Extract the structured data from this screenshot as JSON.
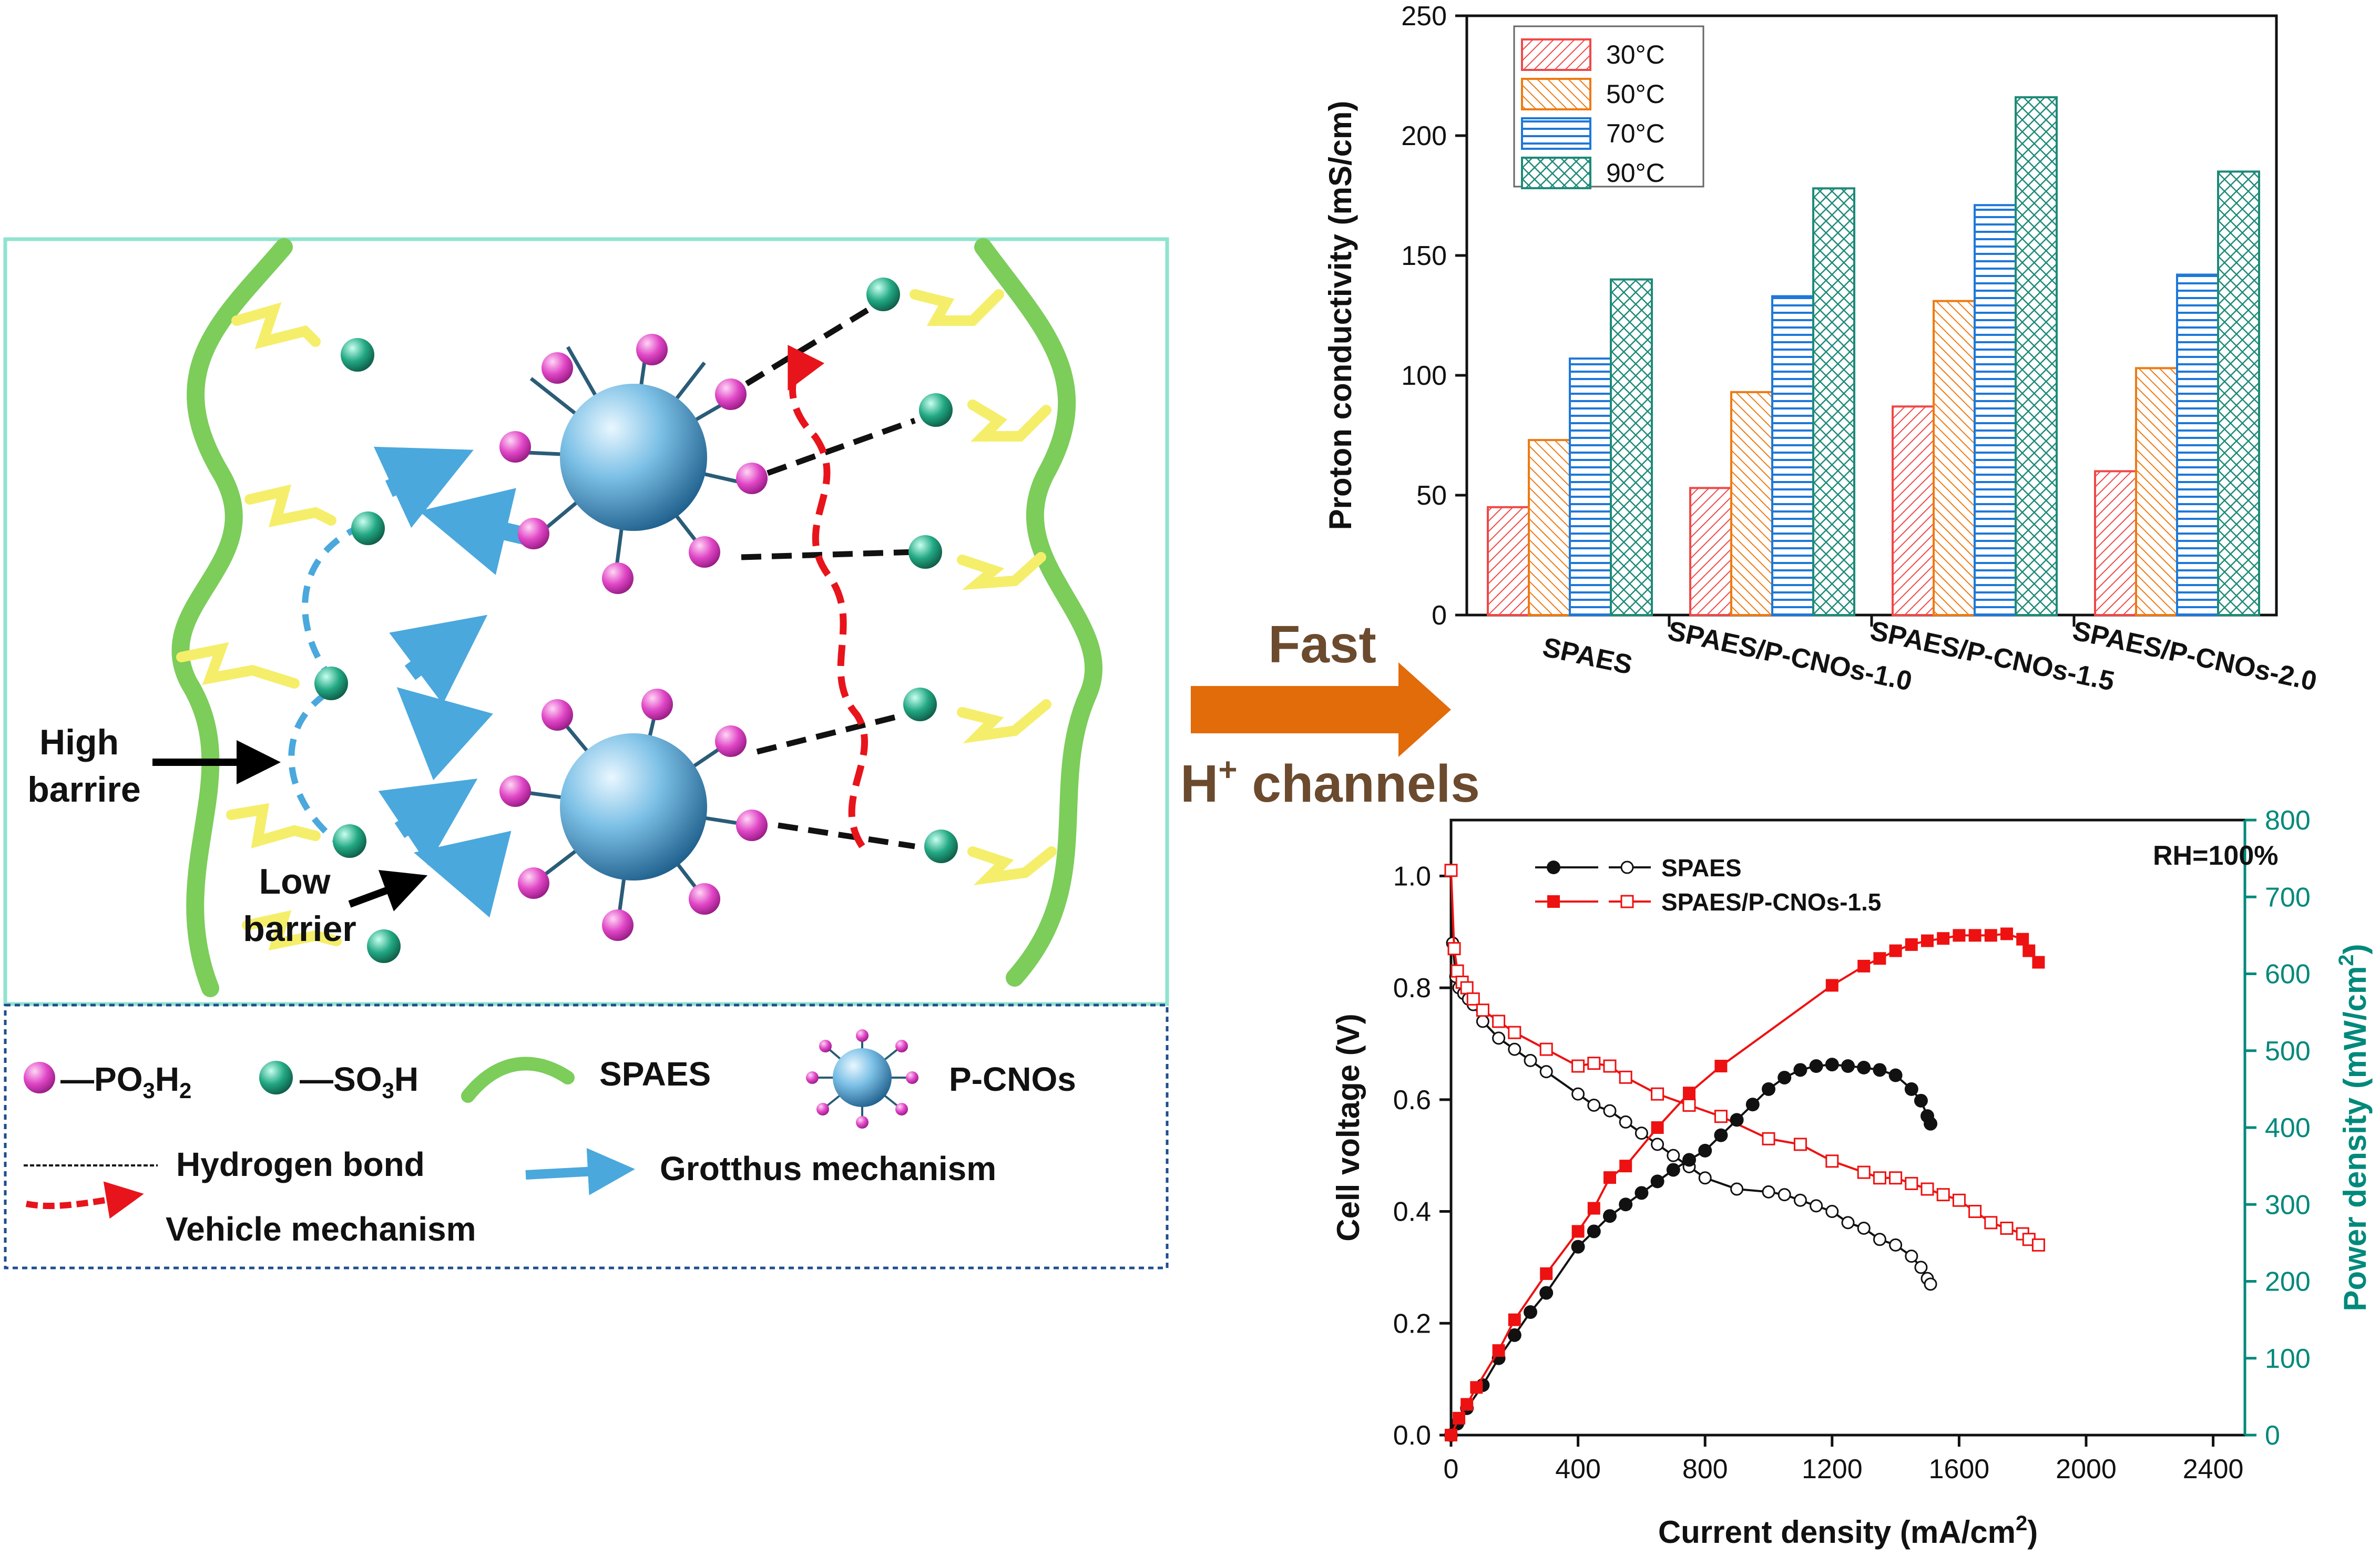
{
  "schematic": {
    "label_high_barrier": [
      "High",
      "barrire"
    ],
    "label_low_barrier": [
      "Low",
      "barrier"
    ]
  },
  "legend": {
    "po3h2_parts": [
      "—PO",
      "3",
      "H",
      "2"
    ],
    "so3h_parts": [
      "—SO",
      "3",
      "H"
    ],
    "spaes": "SPAES",
    "pcnos": "P-CNOs",
    "hydrogen_bond": "Hydrogen bond",
    "grotthus": "Grotthus mechanism",
    "vehicle": "Vehicle mechanism"
  },
  "arrow_label": {
    "top": "Fast",
    "bottom_prefix": "H",
    "bottom_sup": "+",
    "bottom_suffix": " channels"
  },
  "colors": {
    "membrane_green": "#7ccd5a",
    "sidechain_yellow": "#f5ee6a",
    "frame_teal": "#8fe3cf",
    "legend_border": "#1f4e8c",
    "grotthus_blue": "#4aa8dd",
    "vehicle_red": "#e8141b",
    "fast_arrow": "#e26b0a",
    "heading_brown": "#6b4a2e",
    "po3h2_pink": "#d83cc2",
    "so3h_green": "#1e9e7a",
    "core_blue": "#5fa6cc",
    "c30": "#f04848",
    "c50": "#ef7a12",
    "c70": "#1e78d8",
    "c90": "#1e8a78",
    "c90_fill": "#2a9d8a",
    "red_series": "#ee1111",
    "power_axis": "#00897b"
  },
  "chart_data": [
    {
      "type": "bar",
      "ylabel": "Proton conductivity (mS/cm)",
      "ylim": [
        0,
        250
      ],
      "yticks": [
        "0",
        "50",
        "100",
        "150",
        "200",
        "250"
      ],
      "categories": [
        "SPAES",
        "SPAES/P-CNOs-1.0",
        "SPAES/P-CNOs-1.5",
        "SPAES/P-CNOs-2.0"
      ],
      "series": [
        {
          "name": "30°C",
          "values": [
            45,
            53,
            87,
            60
          ]
        },
        {
          "name": "50°C",
          "values": [
            73,
            93,
            131,
            103
          ]
        },
        {
          "name": "70°C",
          "values": [
            107,
            133,
            171,
            142
          ]
        },
        {
          "name": "90°C",
          "values": [
            140,
            178,
            216,
            185
          ]
        }
      ],
      "legend_position": "top-left"
    },
    {
      "type": "line",
      "xlabel_prefix": "Current density (mA/cm",
      "xlabel_sup": "2",
      "xlabel_suffix": ")",
      "ylabel": "Cell voltage (V)",
      "y2label_prefix": "Power density (mW/cm",
      "y2label_sup": "2",
      "y2label_suffix": ")",
      "annotation": "RH=100%",
      "xlim": [
        0,
        2500
      ],
      "ylim": [
        0,
        1.1
      ],
      "y2lim": [
        0,
        800
      ],
      "xticks": [
        "0",
        "400",
        "800",
        "1200",
        "1600",
        "2000",
        "2400"
      ],
      "yticks": [
        "0.0",
        "0.2",
        "0.4",
        "0.6",
        "0.8",
        "1.0"
      ],
      "y2ticks": [
        "0",
        "100",
        "200",
        "300",
        "400",
        "500",
        "600",
        "700",
        "800"
      ],
      "legend": [
        {
          "name": "SPAES"
        },
        {
          "name": "SPAES/P-CNOs-1.5"
        }
      ],
      "series": [
        {
          "name": "SPAES polarization (V)",
          "axis": "left",
          "marker": "open-circle",
          "x": [
            0,
            5,
            15,
            25,
            40,
            55,
            70,
            100,
            150,
            200,
            250,
            300,
            400,
            450,
            500,
            550,
            600,
            650,
            700,
            750,
            800,
            900,
            1000,
            1050,
            1100,
            1150,
            1200,
            1250,
            1300,
            1350,
            1400,
            1450,
            1480,
            1500,
            1510
          ],
          "y": [
            1.01,
            0.88,
            0.82,
            0.8,
            0.79,
            0.78,
            0.77,
            0.74,
            0.71,
            0.69,
            0.67,
            0.65,
            0.61,
            0.59,
            0.58,
            0.56,
            0.54,
            0.52,
            0.5,
            0.48,
            0.46,
            0.44,
            0.435,
            0.43,
            0.42,
            0.41,
            0.4,
            0.38,
            0.37,
            0.35,
            0.34,
            0.32,
            0.3,
            0.28,
            0.27
          ]
        },
        {
          "name": "SPAES/P-CNOs-1.5 polarization (V)",
          "axis": "left",
          "marker": "open-square",
          "x": [
            0,
            10,
            20,
            35,
            50,
            70,
            100,
            150,
            200,
            300,
            400,
            450,
            500,
            550,
            650,
            750,
            850,
            1000,
            1100,
            1200,
            1300,
            1350,
            1400,
            1450,
            1500,
            1550,
            1600,
            1650,
            1700,
            1750,
            1800,
            1820,
            1850
          ],
          "y": [
            1.01,
            0.87,
            0.83,
            0.81,
            0.8,
            0.78,
            0.76,
            0.74,
            0.72,
            0.69,
            0.66,
            0.665,
            0.66,
            0.64,
            0.61,
            0.59,
            0.57,
            0.53,
            0.52,
            0.49,
            0.47,
            0.46,
            0.46,
            0.45,
            0.44,
            0.43,
            0.42,
            0.4,
            0.38,
            0.37,
            0.36,
            0.35,
            0.34
          ]
        },
        {
          "name": "SPAES power (mW/cm²)",
          "axis": "right",
          "marker": "filled-circle",
          "x": [
            0,
            20,
            50,
            100,
            150,
            200,
            250,
            300,
            400,
            450,
            500,
            550,
            600,
            650,
            700,
            750,
            800,
            850,
            900,
            950,
            1000,
            1050,
            1100,
            1150,
            1200,
            1250,
            1300,
            1350,
            1400,
            1450,
            1480,
            1500,
            1510
          ],
          "y": [
            0,
            15,
            35,
            65,
            100,
            130,
            160,
            185,
            245,
            265,
            285,
            300,
            315,
            330,
            345,
            358,
            370,
            390,
            410,
            430,
            450,
            465,
            475,
            480,
            482,
            480,
            478,
            475,
            468,
            450,
            435,
            415,
            405
          ]
        },
        {
          "name": "SPAES/P-CNOs-1.5 power (mW/cm²)",
          "axis": "right",
          "marker": "filled-square",
          "x": [
            0,
            25,
            50,
            80,
            150,
            200,
            300,
            400,
            450,
            500,
            550,
            650,
            750,
            850,
            1200,
            1300,
            1350,
            1400,
            1450,
            1500,
            1550,
            1600,
            1650,
            1700,
            1750,
            1800,
            1820,
            1850
          ],
          "y": [
            0,
            22,
            40,
            62,
            110,
            150,
            210,
            265,
            295,
            335,
            350,
            400,
            445,
            480,
            585,
            610,
            620,
            630,
            638,
            643,
            646,
            650,
            650,
            650,
            652,
            645,
            630,
            615
          ]
        }
      ]
    }
  ]
}
